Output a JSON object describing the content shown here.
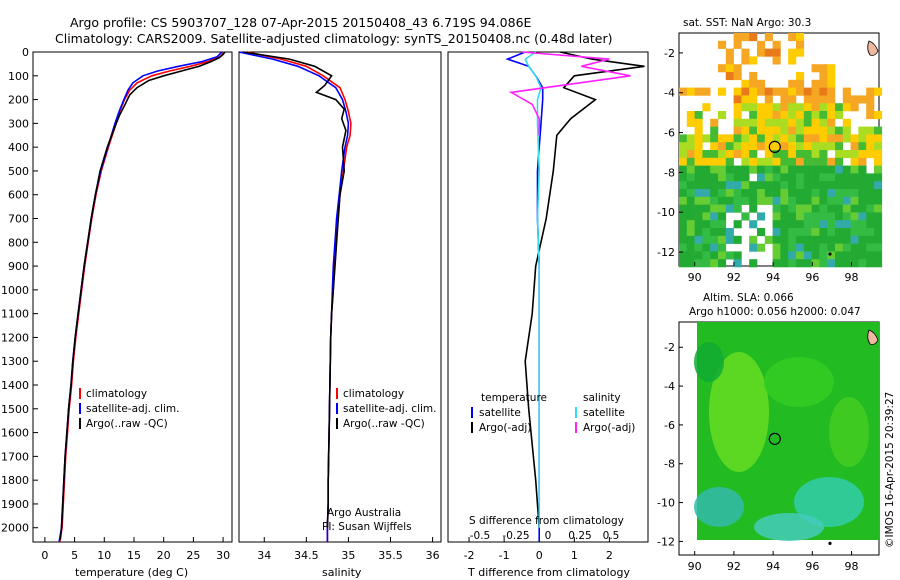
{
  "header": {
    "title_line1": "Argo profile: CS 5903707_128 07-Apr-2015 20150408_43 6.719S 94.086E",
    "title_line2": "Climatology: CARS2009. Satellite-adjusted climatology: synTS_20150408.nc (0.48d later)"
  },
  "depth_axis": {
    "ticks": [
      0,
      100,
      200,
      300,
      400,
      500,
      600,
      700,
      800,
      900,
      1000,
      1100,
      1200,
      1300,
      1400,
      1500,
      1600,
      1700,
      1800,
      1900,
      2000
    ],
    "max": 2060
  },
  "colors": {
    "climatology": "#ff0000",
    "satellite": "#0000ff",
    "argo": "#000000",
    "satellite_sal": "#33ddee",
    "argo_sal": "#ff22ff"
  },
  "chart_data": [
    {
      "type": "line",
      "name": "temperature-profile",
      "xlabel": "temperature (deg C)",
      "xticks": [
        0,
        5,
        10,
        15,
        20,
        25,
        30
      ],
      "xlim": [
        -2,
        31.5
      ],
      "legend": [
        "climatology",
        "satellite-adj. clim.",
        "Argo(..raw -QC)"
      ],
      "series": [
        {
          "name": "climatology",
          "color": "#ff0000",
          "x": [
            30.2,
            29.5,
            27.5,
            24.5,
            21,
            18,
            15.5,
            14.3,
            13.4,
            12.6,
            12,
            10.7,
            9.5,
            8.6,
            7.9,
            7.3,
            6.7,
            6.2,
            5.7,
            5.2,
            4.8,
            4.5,
            4.1,
            3.8,
            3.5,
            3.3,
            3.1,
            2.9,
            2.7,
            2.5
          ],
          "y": [
            0,
            20,
            40,
            60,
            80,
            100,
            130,
            160,
            200,
            250,
            300,
            400,
            500,
            600,
            700,
            800,
            900,
            1000,
            1100,
            1200,
            1300,
            1400,
            1500,
            1600,
            1700,
            1800,
            1900,
            2000,
            2030,
            2060
          ]
        },
        {
          "name": "satellite-adj. clim.",
          "color": "#0000ff",
          "x": [
            29.8,
            29,
            26.5,
            22.5,
            19,
            16.5,
            14.8,
            14,
            13.3,
            12.5,
            11.8,
            10.6,
            9.4,
            8.5,
            7.8,
            7.2,
            6.6,
            6.1,
            5.6,
            5.1,
            4.7,
            4.4,
            4,
            3.7,
            3.4,
            3.2,
            3,
            2.8,
            2.6,
            2.4
          ],
          "y": [
            0,
            20,
            40,
            60,
            80,
            100,
            130,
            160,
            200,
            250,
            300,
            400,
            500,
            600,
            700,
            800,
            900,
            1000,
            1100,
            1200,
            1300,
            1400,
            1500,
            1600,
            1700,
            1800,
            1900,
            2000,
            2030,
            2060
          ]
        },
        {
          "name": "Argo(..raw -QC)",
          "color": "#000000",
          "x": [
            30.3,
            30,
            29.3,
            28,
            26,
            23,
            20,
            17.5,
            15.5,
            14.3,
            13.5,
            12.5,
            11.7,
            10.5,
            9.3,
            8.5,
            7.8,
            7.2,
            6.6,
            6.1,
            5.6,
            5.1,
            4.7,
            4.4,
            4,
            3.7,
            3.4,
            3.2,
            3,
            2.8,
            2.6
          ],
          "y": [
            0,
            10,
            25,
            40,
            60,
            80,
            100,
            120,
            150,
            180,
            220,
            270,
            320,
            400,
            500,
            600,
            700,
            800,
            900,
            1000,
            1100,
            1200,
            1300,
            1400,
            1500,
            1600,
            1700,
            1800,
            1900,
            2000,
            2050
          ]
        }
      ]
    },
    {
      "type": "line",
      "name": "salinity-profile",
      "xlabel": "salinity",
      "xticks": [
        34,
        34.5,
        35,
        35.5,
        36
      ],
      "xlim": [
        33.7,
        36.1
      ],
      "legend": [
        "climatology",
        "satellite-adj. clim.",
        "Argo(..raw -QC)"
      ],
      "annotation": [
        "Argo Australia",
        "PI: Susan Wijffels"
      ],
      "series": [
        {
          "name": "climatology",
          "color": "#ff0000",
          "x": [
            33.8,
            34.2,
            34.5,
            34.7,
            34.9,
            34.96,
            35.0,
            35.03,
            35.02,
            34.98,
            34.94,
            34.9,
            34.87,
            34.85,
            34.83,
            34.82,
            34.8,
            34.79,
            34.78,
            34.77,
            34.76,
            34.76,
            34.75,
            34.75
          ],
          "y": [
            0,
            30,
            60,
            100,
            150,
            200,
            250,
            300,
            350,
            400,
            500,
            600,
            700,
            800,
            900,
            1000,
            1100,
            1200,
            1400,
            1600,
            1800,
            1900,
            2000,
            2060
          ]
        },
        {
          "name": "satellite-adj. clim.",
          "color": "#0000ff",
          "x": [
            33.7,
            34.1,
            34.4,
            34.65,
            34.85,
            34.93,
            34.97,
            35.0,
            34.99,
            34.96,
            34.92,
            34.89,
            34.86,
            34.84,
            34.82,
            34.81,
            34.8,
            34.79,
            34.78,
            34.77,
            34.76,
            34.76,
            34.75,
            34.75
          ],
          "y": [
            0,
            30,
            60,
            100,
            150,
            200,
            250,
            300,
            350,
            400,
            500,
            600,
            700,
            800,
            900,
            1000,
            1100,
            1200,
            1400,
            1600,
            1800,
            1900,
            2000,
            2060
          ]
        },
        {
          "name": "Argo(..raw -QC)",
          "color": "#000000",
          "x": [
            33.75,
            34.3,
            34.6,
            34.8,
            34.72,
            34.62,
            34.85,
            34.95,
            34.92,
            34.97,
            34.93,
            34.95,
            34.9,
            34.88,
            34.86,
            34.84,
            34.82,
            34.8,
            34.79,
            34.78,
            34.77,
            34.76,
            34.76,
            34.75
          ],
          "y": [
            0,
            30,
            60,
            100,
            140,
            170,
            200,
            240,
            280,
            330,
            400,
            500,
            600,
            700,
            800,
            900,
            1000,
            1100,
            1200,
            1400,
            1600,
            1800,
            1900,
            2000
          ]
        }
      ]
    },
    {
      "type": "line",
      "name": "difference-profile",
      "xlabel": "T difference from climatology",
      "xticks": [
        -2,
        -1,
        0,
        1,
        2
      ],
      "xlim": [
        -2.6,
        3.1
      ],
      "secondary_xlabel": "S difference from climatology",
      "secondary_xticks": [
        "-0.5",
        "-0.25",
        "0",
        "0.25",
        "0.5"
      ],
      "legend_titles": [
        "temperature",
        "salinity"
      ],
      "legend": [
        "satellite",
        "Argo(-adj)",
        "satellite",
        "Argo(-adj)"
      ],
      "series": [
        {
          "name": "temperature satellite",
          "color": "#0000ff",
          "x": [
            -0.4,
            -0.9,
            -0.3,
            -0.1,
            0.1,
            0.1,
            0.05,
            0.0,
            -0.05,
            -0.05,
            0.0,
            0.0,
            0.0,
            0.0,
            0.0,
            0.0
          ],
          "y": [
            0,
            30,
            60,
            100,
            150,
            200,
            300,
            400,
            500,
            700,
            900,
            1200,
            1500,
            1800,
            2000,
            2060
          ]
        },
        {
          "name": "temperature Argo(-adj)",
          "color": "#000000",
          "x": [
            0.6,
            1.5,
            3.0,
            1.0,
            0.7,
            1.6,
            0.9,
            0.5,
            0.4,
            0.2,
            -0.1,
            -0.2,
            -0.4,
            -0.3,
            -0.1,
            0.0
          ],
          "y": [
            0,
            30,
            60,
            100,
            150,
            200,
            280,
            350,
            500,
            700,
            900,
            1100,
            1300,
            1500,
            1800,
            2000
          ]
        },
        {
          "name": "salinity satellite",
          "color": "#33ddee",
          "x": [
            -0.1,
            -0.4,
            -0.3,
            -0.1,
            0.05,
            -0.05,
            -0.05,
            0.0,
            -0.05,
            0.0,
            0.0,
            0.0,
            0.0
          ],
          "y": [
            0,
            30,
            60,
            100,
            150,
            200,
            300,
            500,
            700,
            900,
            1200,
            1600,
            2000
          ]
        },
        {
          "name": "salinity Argo(-adj)",
          "color": "#ff22ff",
          "x": [
            -0.5,
            2.0,
            1.2,
            2.6,
            -0.8,
            -0.2,
            0.0,
            0.0
          ],
          "y": [
            0,
            30,
            60,
            100,
            170,
            220,
            280,
            350
          ]
        }
      ]
    },
    {
      "type": "heatmap",
      "name": "sst-map",
      "title": "sat. SST: NaN Argo: 30.3",
      "xticks": [
        90,
        92,
        94,
        96,
        98
      ],
      "yticks": [
        -2,
        -4,
        -6,
        -8,
        -10,
        -12
      ],
      "xlim": [
        89.2,
        99.4
      ],
      "ylim": [
        -12.7,
        -1.0
      ],
      "marker": [
        94.086,
        -6.719
      ]
    },
    {
      "type": "heatmap",
      "name": "sla-map",
      "title_line1": "Altim. SLA: 0.066",
      "title_line2": "Argo h1000: 0.056 h2000: 0.047",
      "xticks": [
        90,
        92,
        94,
        96,
        98
      ],
      "yticks": [
        -2,
        -4,
        -6,
        -8,
        -10,
        -12
      ],
      "xlim": [
        89.2,
        99.4
      ],
      "ylim": [
        -12.7,
        -0.7
      ],
      "marker": [
        94.086,
        -6.719
      ]
    }
  ],
  "footer": {
    "timestamp": "©IMOS 16-Apr-2015 20:39:27"
  }
}
